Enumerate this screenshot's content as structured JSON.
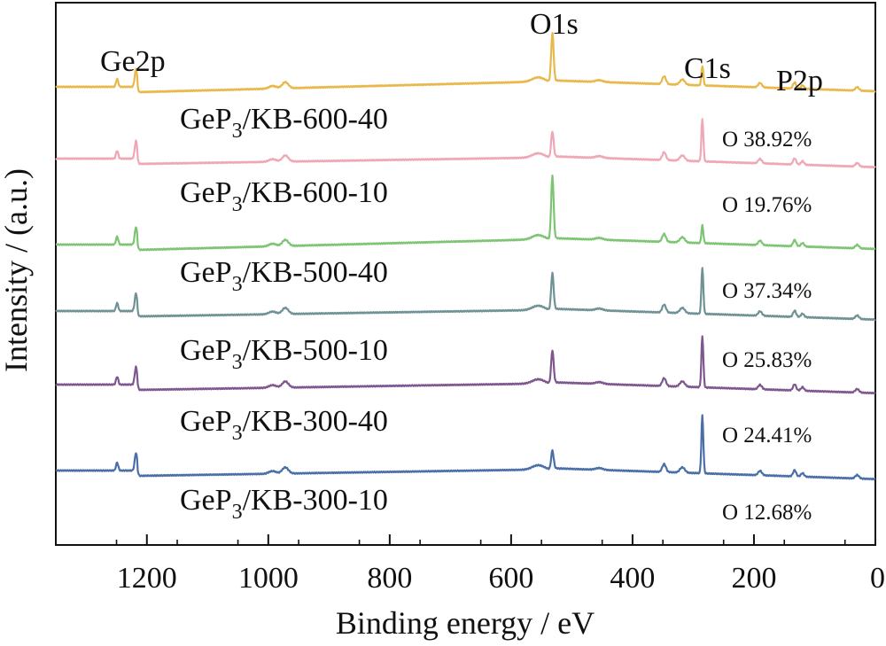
{
  "chart_data": {
    "type": "line",
    "xlabel": "Binding energy / eV",
    "ylabel": "Intensity / (a.u.)",
    "xlim": [
      1350,
      0
    ],
    "x_reversed": true,
    "x_ticks": [
      1200,
      1000,
      800,
      600,
      400,
      200,
      0
    ],
    "y_ticks_shown": false,
    "peak_labels": [
      {
        "text": "Ge2p",
        "x": 1220
      },
      {
        "text": "O1s",
        "x": 532
      },
      {
        "text": "C1s",
        "x": 285
      },
      {
        "text": "P2p",
        "x": 133
      }
    ],
    "series": [
      {
        "name": "GeP3/KB-600-40",
        "name_main": "GeP",
        "name_sub": "3",
        "name_rest": "/KB-600-40",
        "oxygen": "O 38.92%",
        "color": "#E8B84B",
        "peaks": {
          "o1s": 55,
          "c1s": 22
        }
      },
      {
        "name": "GeP3/KB-600-10",
        "name_main": "GeP",
        "name_sub": "3",
        "name_rest": "/KB-600-10",
        "oxygen": "O 19.76%",
        "color": "#F0A7B5",
        "peaks": {
          "o1s": 30,
          "c1s": 48
        }
      },
      {
        "name": "GeP3/KB-500-40",
        "name_main": "GeP",
        "name_sub": "3",
        "name_rest": "/KB-500-40",
        "oxygen": "O 37.34%",
        "color": "#7DC473",
        "peaks": {
          "o1s": 72,
          "c1s": 20
        }
      },
      {
        "name": "GeP3/KB-500-10",
        "name_main": "GeP",
        "name_sub": "3",
        "name_rest": "/KB-500-10",
        "oxygen": "O 25.83%",
        "color": "#6F9294",
        "peaks": {
          "o1s": 42,
          "c1s": 52
        }
      },
      {
        "name": "GeP3/KB-300-40",
        "name_main": "GeP",
        "name_sub": "3",
        "name_rest": "/KB-300-40",
        "oxygen": "O 24.41%",
        "color": "#7E5690",
        "peaks": {
          "o1s": 38,
          "c1s": 58
        }
      },
      {
        "name": "GeP3/KB-300-10",
        "name_main": "GeP",
        "name_sub": "3",
        "name_rest": "/KB-300-10",
        "oxygen": "O 12.68%",
        "color": "#4A6FA8",
        "peaks": {
          "o1s": 22,
          "c1s": 65
        }
      }
    ]
  }
}
